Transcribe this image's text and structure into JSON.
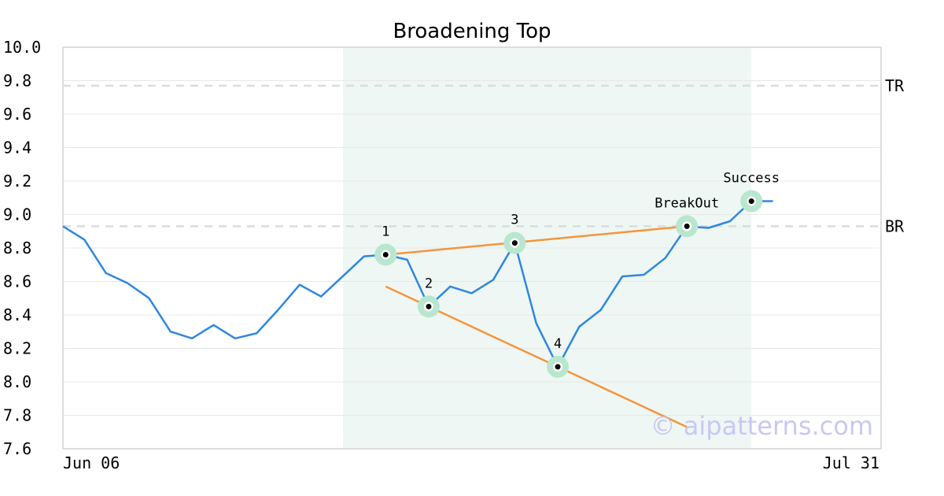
{
  "chart_data": {
    "type": "line",
    "title": "Broadening Top",
    "ylim": [
      7.6,
      10.0
    ],
    "yticks": [
      "7.6",
      "7.8",
      "8.0",
      "8.2",
      "8.4",
      "8.6",
      "8.8",
      "9.0",
      "9.2",
      "9.4",
      "9.6",
      "9.8",
      "10.0"
    ],
    "x_labels": {
      "start": "Jun 06",
      "end": "Jul 31"
    },
    "grid": true,
    "series": [
      {
        "color": "#2f87e2",
        "values": [
          8.93,
          8.85,
          8.65,
          8.59,
          8.5,
          8.3,
          8.26,
          8.34,
          8.26,
          8.29,
          8.43,
          8.58,
          8.51,
          8.63,
          8.75,
          8.76,
          8.73,
          8.45,
          8.57,
          8.53,
          8.61,
          8.83,
          8.35,
          8.09,
          8.33,
          8.43,
          8.63,
          8.64,
          8.74,
          8.93,
          8.92,
          8.96,
          9.08,
          9.08
        ]
      }
    ],
    "highlight_range": [
      13,
      32
    ],
    "reference_lines": [
      {
        "label": "TR",
        "value": 9.77
      },
      {
        "label": "BR",
        "value": 8.93
      }
    ],
    "markers": [
      {
        "label": "1",
        "index": 15,
        "value": 8.76
      },
      {
        "label": "2",
        "index": 17,
        "value": 8.45
      },
      {
        "label": "3",
        "index": 21,
        "value": 8.83
      },
      {
        "label": "4",
        "index": 23,
        "value": 8.09
      },
      {
        "label": "BreakOut",
        "index": 29,
        "value": 8.93
      },
      {
        "label": "Success",
        "index": 32,
        "value": 9.08
      }
    ],
    "trendlines": [
      {
        "from": [
          15,
          8.76
        ],
        "to": [
          29,
          8.93
        ],
        "color": "#f5953e"
      },
      {
        "from": [
          15,
          8.57
        ],
        "to": [
          29,
          7.73
        ],
        "color": "#f5953e"
      }
    ]
  },
  "watermark": "© aipatterns.com"
}
